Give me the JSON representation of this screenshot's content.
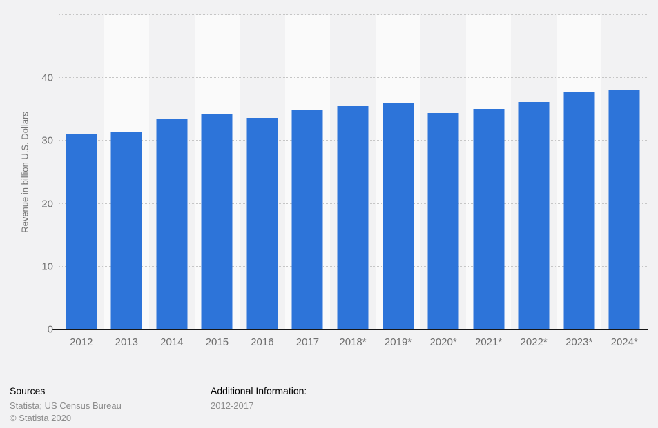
{
  "chart_data": {
    "type": "bar",
    "title": "",
    "categories": [
      "2012",
      "2013",
      "2014",
      "2015",
      "2016",
      "2017",
      "2018*",
      "2019*",
      "2020*",
      "2021*",
      "2022*",
      "2023*",
      "2024*"
    ],
    "values": [
      31.0,
      31.5,
      33.6,
      34.2,
      33.7,
      35.0,
      35.5,
      36.0,
      34.4,
      35.1,
      36.2,
      37.7,
      38.0
    ],
    "xlabel": "",
    "ylabel": "Revenue in billion U.S. Dollars",
    "ylim": [
      0,
      50
    ],
    "ytick_labels": [
      0,
      10,
      20,
      30,
      40
    ],
    "gridline_values": [
      10,
      20,
      30,
      40,
      50
    ],
    "grid": "dotted horizontal",
    "legend": "none",
    "bar_color": "#2d74d9"
  },
  "colors": {
    "page_background": "#f2f2f3",
    "stripe_light": "#fafafa",
    "gridline": "#c6c6c6",
    "axis_line": "#161616",
    "tick_text": "#737373",
    "bar": "#2d74d9"
  },
  "footer": {
    "sources_label": "Sources",
    "sources_value": "Statista; US Census Bureau",
    "copyright": "© Statista 2020",
    "additional_info_label": "Additional Information:",
    "additional_info_value": "2012-2017"
  }
}
